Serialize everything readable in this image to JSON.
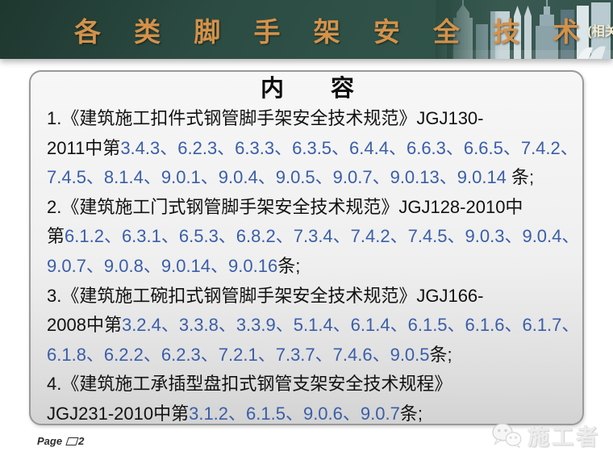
{
  "header": {
    "title": "各 类 脚 手 架 安 全 技 术",
    "subtitle": "(相关强制性条文整理)",
    "bg_color": "#2c4c43",
    "title_color": "#d4924a",
    "subtitle_color": "#f2eccd",
    "skyline_icon": "city-skyline-graphic"
  },
  "content": {
    "title": "内　　容",
    "text_color": "#111111",
    "accent_blue": "#3a5ea9",
    "lines": [
      {
        "segments": [
          {
            "t": "1.《建筑施工扣件式钢管脚手架安全技术规范》JGJ130-",
            "c": "k"
          }
        ]
      },
      {
        "segments": [
          {
            "t": "2011中第",
            "c": "k"
          },
          {
            "t": "3.4.3、6.2.3、6.3.3、6.3.5、6.4.4、6.6.3、6.6.5、7.4.2、",
            "c": "b"
          }
        ]
      },
      {
        "segments": [
          {
            "t": "7.4.5、8.1.4、9.0.1、9.0.4、9.0.5、9.0.7、9.0.13、9.0.14",
            "c": "b"
          },
          {
            "t": " 条;",
            "c": "k"
          }
        ]
      },
      {
        "segments": [
          {
            "t": "2.《建筑施工门式钢管脚手架安全技术规范》JGJ128-2010中",
            "c": "k"
          }
        ]
      },
      {
        "segments": [
          {
            "t": "第",
            "c": "k"
          },
          {
            "t": "6.1.2、6.3.1、6.5.3、6.8.2、7.3.4、7.4.2、7.4.5、9.0.3、9.0.4、",
            "c": "b"
          }
        ]
      },
      {
        "segments": [
          {
            "t": "9.0.7、9.0.8、9.0.14、9.0.16",
            "c": "b"
          },
          {
            "t": "条;",
            "c": "k"
          }
        ]
      },
      {
        "segments": [
          {
            "t": "3.《建筑施工碗扣式钢管脚手架安全技术规范》JGJ166-",
            "c": "k"
          }
        ]
      },
      {
        "segments": [
          {
            "t": "2008中第",
            "c": "k"
          },
          {
            "t": "3.2.4、3.3.8、3.3.9、5.1.4、6.1.4、6.1.5、6.1.6、6.1.7、",
            "c": "b"
          }
        ]
      },
      {
        "segments": [
          {
            "t": "6.1.8、6.2.2、6.2.3、7.2.1、7.3.7、7.4.6、9.0.5",
            "c": "b"
          },
          {
            "t": "条;",
            "c": "k"
          }
        ]
      },
      {
        "segments": [
          {
            "t": "4.《建筑施工承插型盘扣式钢管支架安全技术规程》",
            "c": "k"
          }
        ]
      },
      {
        "segments": [
          {
            "t": "JGJ231-2010中第",
            "c": "k"
          },
          {
            "t": "3.1.2、6.1.5、9.0.6、9.0.7",
            "c": "b"
          },
          {
            "t": "条;",
            "c": "k"
          }
        ]
      }
    ]
  },
  "footer": {
    "page_label": "Page",
    "page_number": "2"
  },
  "watermark": {
    "icon": "wechat-icon",
    "text": "施工者"
  }
}
